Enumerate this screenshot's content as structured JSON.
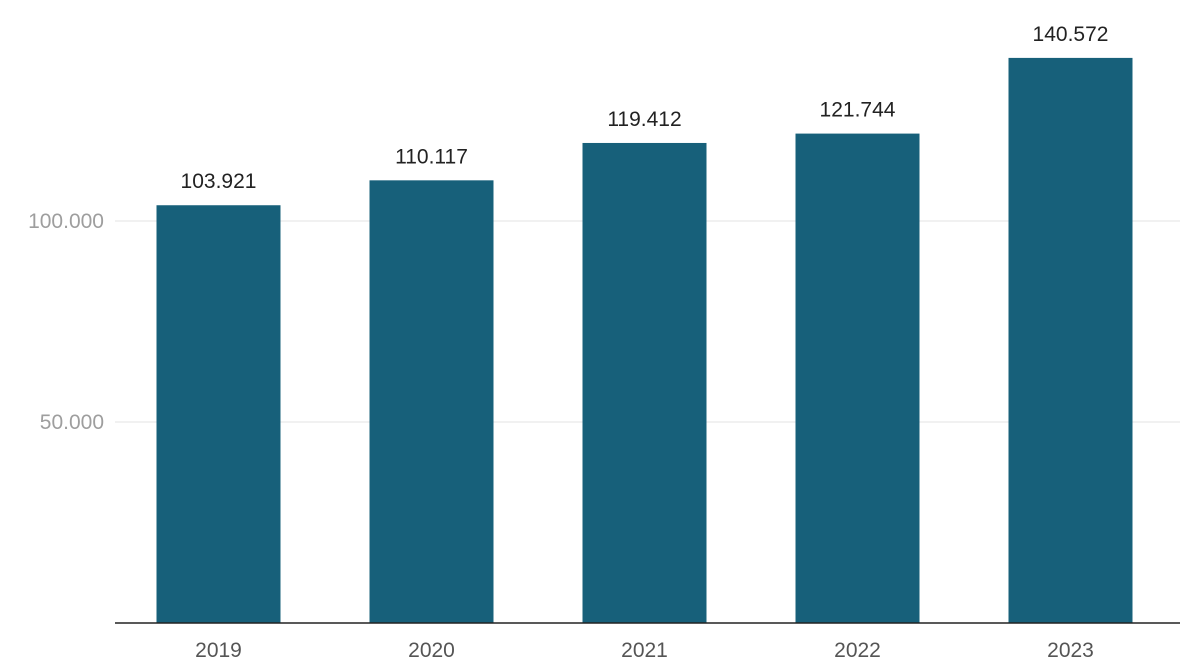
{
  "chart_data": {
    "type": "bar",
    "title": "",
    "xlabel": "",
    "ylabel": "",
    "categories": [
      "2019",
      "2020",
      "2021",
      "2022",
      "2023"
    ],
    "values": [
      103921,
      110117,
      119412,
      121744,
      140572
    ],
    "value_labels": [
      "103.921",
      "110.117",
      "119.412",
      "121.744",
      "140.572"
    ],
    "y_ticks": [
      50000,
      100000
    ],
    "y_tick_labels": [
      "50.000",
      "100.000"
    ],
    "ylim": [
      0,
      150000
    ],
    "grid": true,
    "legend": "none",
    "bar_color": "#17607a"
  }
}
